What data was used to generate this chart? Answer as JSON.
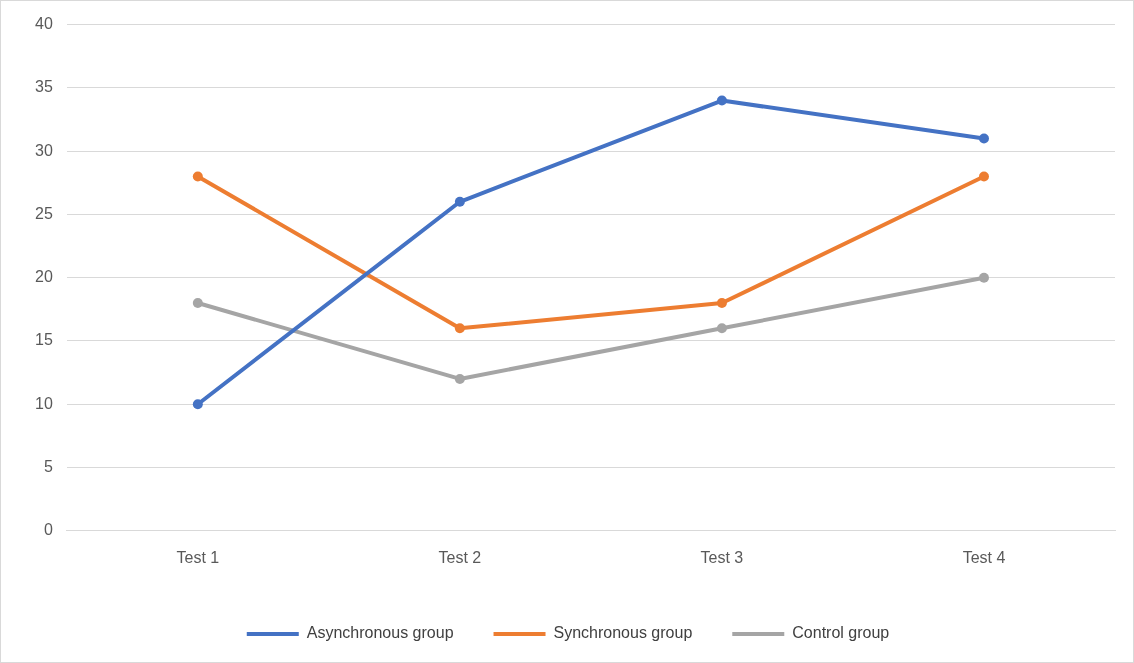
{
  "chart_data": {
    "type": "line",
    "categories": [
      "Test 1",
      "Test 2",
      "Test 3",
      "Test 4"
    ],
    "series": [
      {
        "name": "Asynchronous group",
        "color": "#4472c4",
        "values": [
          10,
          26,
          34,
          31
        ]
      },
      {
        "name": "Synchronous group",
        "color": "#ed7d31",
        "values": [
          28,
          16,
          18,
          28
        ]
      },
      {
        "name": "Control group",
        "color": "#a5a5a5",
        "values": [
          18,
          12,
          16,
          20
        ]
      }
    ],
    "ylim": [
      0,
      40
    ],
    "yticks": [
      0,
      5,
      10,
      15,
      20,
      25,
      30,
      35,
      40
    ],
    "grid": "y",
    "legend": "bottom",
    "marker": "circle",
    "line_style": "solid"
  }
}
